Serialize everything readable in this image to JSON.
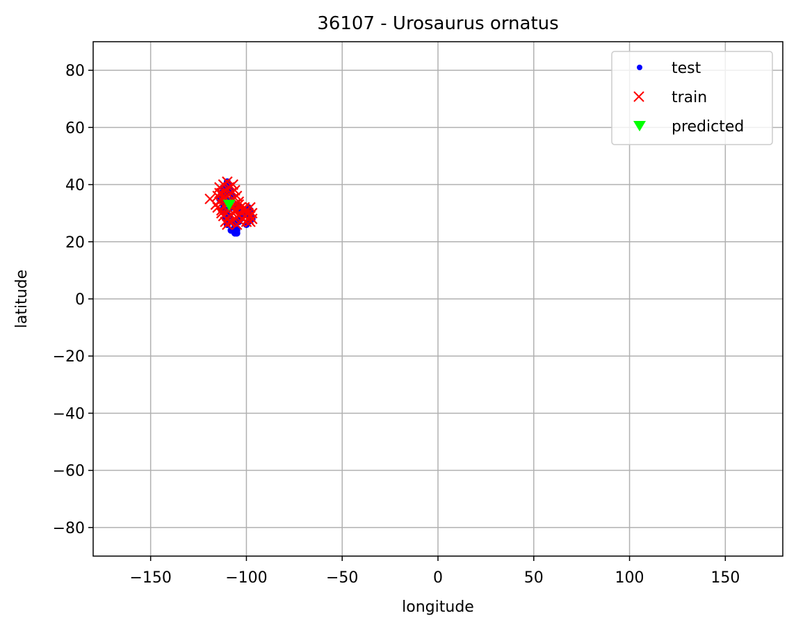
{
  "chart_data": {
    "type": "scatter",
    "title": "36107 - Urosaurus ornatus",
    "xlabel": "longitude",
    "ylabel": "latitude",
    "xlim": [
      -180,
      180
    ],
    "ylim": [
      -90,
      90
    ],
    "xticks": [
      -150,
      -100,
      -50,
      0,
      50,
      100,
      150
    ],
    "xtick_labels": [
      "−150",
      "−100",
      "−50",
      "0",
      "50",
      "100",
      "150"
    ],
    "yticks": [
      80,
      60,
      40,
      20,
      0,
      -20,
      -40,
      -60,
      -80
    ],
    "ytick_labels": [
      "80",
      "60",
      "40",
      "20",
      "0",
      "−20",
      "−40",
      "−60",
      "−80"
    ],
    "grid": true,
    "legend_position": "top-right",
    "series": [
      {
        "name": "test",
        "marker": "dot",
        "color": "#0000ff",
        "points": [
          [
            -110,
            41
          ],
          [
            -109,
            40
          ],
          [
            -111,
            39
          ],
          [
            -112,
            38
          ],
          [
            -108,
            38
          ],
          [
            -113,
            37
          ],
          [
            -110,
            37
          ],
          [
            -107,
            36
          ],
          [
            -114,
            35
          ],
          [
            -111,
            35
          ],
          [
            -109,
            34
          ],
          [
            -112,
            33
          ],
          [
            -108,
            32
          ],
          [
            -110,
            31
          ],
          [
            -113,
            31
          ],
          [
            -109,
            29
          ],
          [
            -111,
            28
          ],
          [
            -107,
            27
          ],
          [
            -106,
            26
          ],
          [
            -106,
            25
          ],
          [
            -105,
            24
          ],
          [
            -106,
            23
          ],
          [
            -105,
            23
          ],
          [
            -104,
            27
          ],
          [
            -103,
            28
          ],
          [
            -102,
            29
          ],
          [
            -101,
            30
          ],
          [
            -100,
            31
          ],
          [
            -99,
            32
          ],
          [
            -98,
            31
          ],
          [
            -98,
            29
          ],
          [
            -99,
            27
          ],
          [
            -100,
            26
          ],
          [
            -97,
            28
          ],
          [
            -103,
            32
          ],
          [
            -104,
            31
          ],
          [
            -105,
            33
          ],
          [
            -110,
            26
          ],
          [
            -108,
            24
          ]
        ]
      },
      {
        "name": "train",
        "marker": "x",
        "color": "#ff0000",
        "points": [
          [
            -119,
            35
          ],
          [
            -116,
            33
          ],
          [
            -115,
            36
          ],
          [
            -115,
            32
          ],
          [
            -114,
            39
          ],
          [
            -114,
            34
          ],
          [
            -113,
            37
          ],
          [
            -113,
            31
          ],
          [
            -112,
            40
          ],
          [
            -112,
            35
          ],
          [
            -112,
            29
          ],
          [
            -111,
            38
          ],
          [
            -111,
            33
          ],
          [
            -111,
            27
          ],
          [
            -110,
            41
          ],
          [
            -110,
            36
          ],
          [
            -110,
            31
          ],
          [
            -110,
            26
          ],
          [
            -109,
            39
          ],
          [
            -109,
            34
          ],
          [
            -109,
            29
          ],
          [
            -108,
            37
          ],
          [
            -108,
            32
          ],
          [
            -108,
            27
          ],
          [
            -107,
            40
          ],
          [
            -107,
            35
          ],
          [
            -107,
            30
          ],
          [
            -106,
            38
          ],
          [
            -106,
            33
          ],
          [
            -106,
            28
          ],
          [
            -105,
            36
          ],
          [
            -105,
            31
          ],
          [
            -105,
            26
          ],
          [
            -104,
            34
          ],
          [
            -104,
            29
          ],
          [
            -103,
            32
          ],
          [
            -103,
            27
          ],
          [
            -102,
            31
          ],
          [
            -102,
            28
          ],
          [
            -101,
            32
          ],
          [
            -101,
            29
          ],
          [
            -100,
            31
          ],
          [
            -100,
            27
          ],
          [
            -99,
            30
          ],
          [
            -99,
            28
          ],
          [
            -98,
            32
          ],
          [
            -98,
            29
          ],
          [
            -97,
            30
          ],
          [
            -97,
            28
          ],
          [
            -98,
            27
          ],
          [
            -113,
            30
          ],
          [
            -109,
            27
          ],
          [
            -112,
            36
          ],
          [
            -114,
            37
          ],
          [
            -104,
            33
          ],
          [
            -106,
            31
          ]
        ]
      },
      {
        "name": "predicted",
        "marker": "triangle-down",
        "color": "#00ff00",
        "points": [
          [
            -109,
            33
          ]
        ]
      }
    ]
  }
}
